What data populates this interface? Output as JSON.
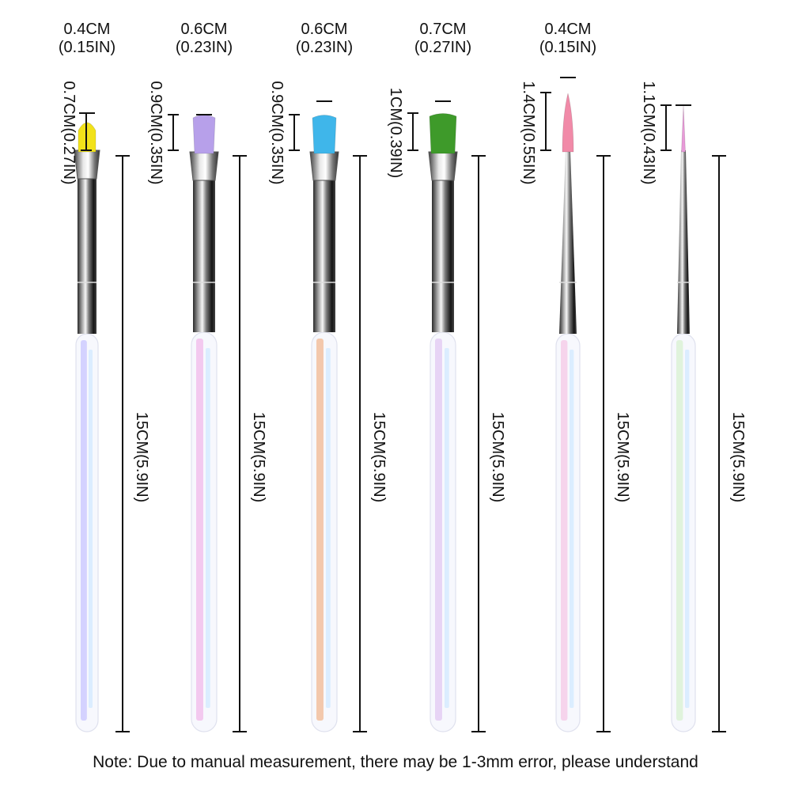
{
  "brushes": [
    {
      "name": "oval-brush",
      "bristle_color": "#f2e21a",
      "handle_tint": "#c8c6ff",
      "tip_width": {
        "cm": "0.4CM",
        "inch": "(0.15IN)"
      },
      "tip_length": "0.7CM(0.27IN)",
      "total_length": "15CM(5.9IN)"
    },
    {
      "name": "purple-brush",
      "bristle_color": "#b7a0ea",
      "handle_tint": "#f1b9ea",
      "tip_width": {
        "cm": "0.6CM",
        "inch": "(0.23IN)"
      },
      "tip_length": "0.9CM(0.35IN)",
      "total_length": "15CM(5.9IN)"
    },
    {
      "name": "blue-brush",
      "bristle_color": "#3fb6ea",
      "handle_tint": "#f1b890",
      "tip_width": {
        "cm": "0.6CM",
        "inch": "(0.23IN)"
      },
      "tip_length": "0.9CM(0.35IN)",
      "total_length": "15CM(5.9IN)"
    },
    {
      "name": "green-brush",
      "bristle_color": "#3e9a2a",
      "handle_tint": "#e1c8f2",
      "tip_width": {
        "cm": "0.7CM",
        "inch": "(0.27IN)"
      },
      "tip_length": "1CM(0.39IN)",
      "total_length": "15CM(5.9IN)"
    },
    {
      "name": "pink-liner-brush",
      "bristle_color": "#f18aa8",
      "handle_tint": "#f6c8e6",
      "tip_width": {
        "cm": "0.4CM",
        "inch": "(0.15IN)"
      },
      "tip_length": "1.4CM(0.55IN)",
      "total_length": "15CM(5.9IN)"
    },
    {
      "name": "thin-liner-brush",
      "bristle_color": "#e89ad8",
      "handle_tint": "#d8f2d0",
      "tip_width": null,
      "tip_length": "1.1CM(0.43IN)",
      "total_length": "15CM(5.9IN)"
    }
  ],
  "note": "Note: Due to manual measurement, there may be 1-3mm error, please understand"
}
